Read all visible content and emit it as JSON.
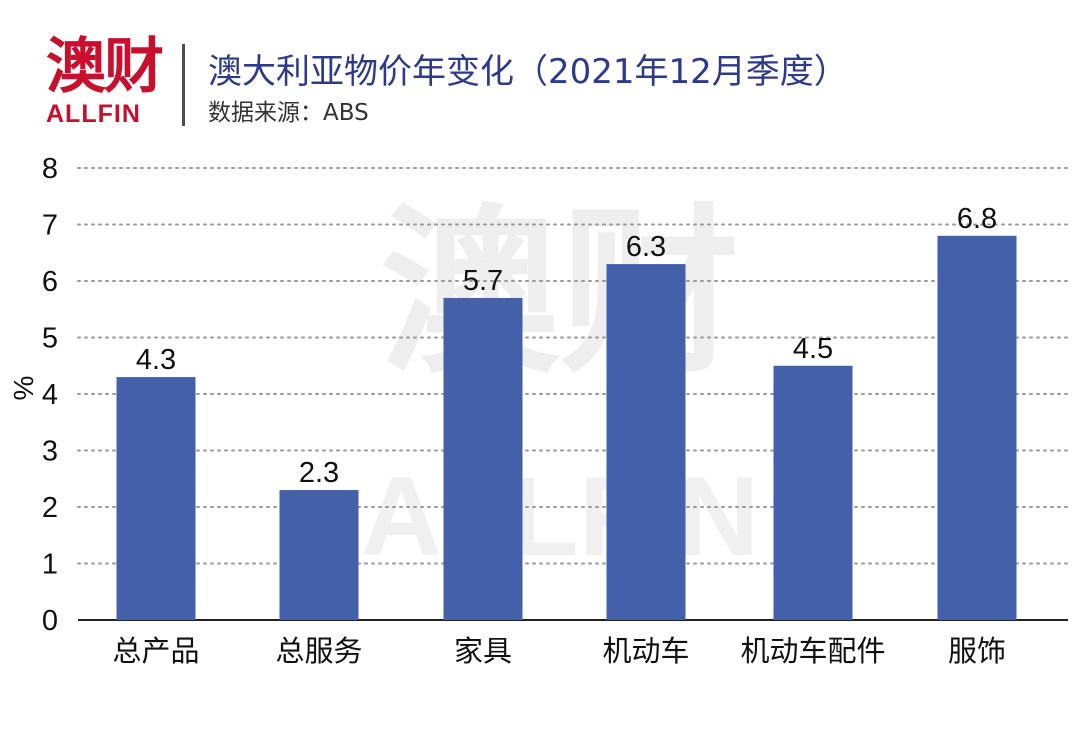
{
  "header": {
    "logo_cn": "澳财",
    "logo_en": "ALLFIN",
    "title": "澳大利亚物价年变化（2021年12月季度）",
    "subtitle": "数据来源：ABS"
  },
  "watermark": {
    "cn": "澳财",
    "en": "ALLFIN"
  },
  "colors": {
    "bar": "#4560ab",
    "logo": "#c8102e",
    "title": "#2d3a8c",
    "grid": "#9a9a9a"
  },
  "chart_data": {
    "type": "bar",
    "categories": [
      "总产品",
      "总服务",
      "家具",
      "机动车",
      "机动车配件",
      "服饰"
    ],
    "values": [
      4.3,
      2.3,
      5.7,
      6.3,
      4.5,
      6.8
    ],
    "data_labels": [
      "4.3",
      "2.3",
      "5.7",
      "6.3",
      "4.5",
      "6.8"
    ],
    "title": "澳大利亚物价年变化（2021年12月季度）",
    "xlabel": "",
    "ylabel": "%",
    "ylim": [
      0,
      8
    ],
    "yticks": [
      "0",
      "1",
      "2",
      "3",
      "4",
      "5",
      "6",
      "7",
      "8"
    ],
    "grid": true,
    "legend": "none"
  }
}
